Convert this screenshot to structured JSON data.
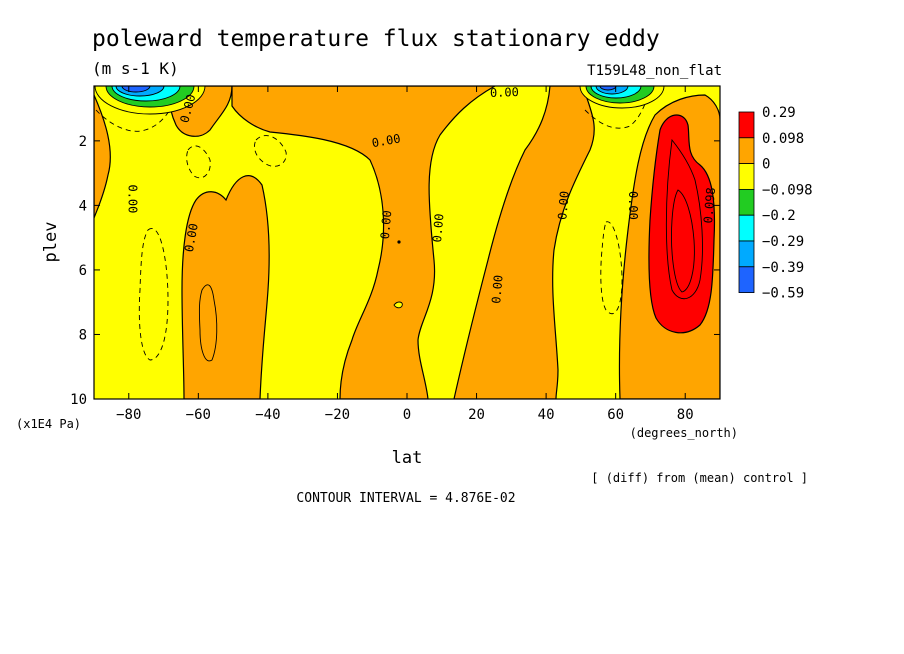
{
  "title": "poleward temperature flux stationary eddy",
  "units": "(m s-1 K)",
  "run_label": "T159L48_non_flat",
  "footer_note": "[ (diff) from (mean) control ]",
  "contour_interval": "CONTOUR INTERVAL = 4.876E-02",
  "chart_data": {
    "type": "heatmap",
    "xlabel": "lat",
    "x_units": "(degrees_north)",
    "ylabel": "plev",
    "y_units": "(x1E4 Pa)",
    "xlim": [
      -90,
      90
    ],
    "ylim": [
      10,
      0.3
    ],
    "x_ticks": [
      -80,
      -60,
      -40,
      -20,
      0,
      20,
      40,
      60,
      80
    ],
    "x_tick_labels": [
      "−80",
      "−60",
      "−40",
      "−20",
      "0",
      "20",
      "40",
      "60",
      "80"
    ],
    "y_ticks": [
      2,
      4,
      6,
      8,
      10
    ],
    "y_tick_labels": [
      "2",
      "4",
      "6",
      "8",
      "10"
    ],
    "colorbar": {
      "labels": [
        "0.29",
        "0.098",
        "0",
        "−0.098",
        "−0.2",
        "−0.29",
        "−0.39",
        "−0.59"
      ],
      "colors": [
        "#ff0000",
        "#ffa500",
        "#ffff00",
        "#22cc22",
        "#00ffff",
        "#00aaff",
        "#1e64ff"
      ]
    },
    "contour_labels": [
      {
        "text": "0.00",
        "lat": -79,
        "plev": 3.8,
        "rotate": 90
      },
      {
        "text": "0.00",
        "lat": -63,
        "plev": 1.0,
        "rotate": -75
      },
      {
        "text": "0.00",
        "lat": -62,
        "plev": 5.0,
        "rotate": -80
      },
      {
        "text": "0.00",
        "lat": -6,
        "plev": 2.0,
        "rotate": -10
      },
      {
        "text": "0.00",
        "lat": -6,
        "plev": 4.6,
        "rotate": -85
      },
      {
        "text": "0.00",
        "lat": 9,
        "plev": 4.7,
        "rotate": -85
      },
      {
        "text": "0.00",
        "lat": 28,
        "plev": 0.5,
        "rotate": -2
      },
      {
        "text": "0.00",
        "lat": 26,
        "plev": 6.6,
        "rotate": -85
      },
      {
        "text": "0.00",
        "lat": 45,
        "plev": 4.0,
        "rotate": -85
      },
      {
        "text": "0.00",
        "lat": 65,
        "plev": 4.0,
        "rotate": 90
      },
      {
        "text": "0.098",
        "lat": 87,
        "plev": 4.0,
        "rotate": -85
      }
    ]
  }
}
